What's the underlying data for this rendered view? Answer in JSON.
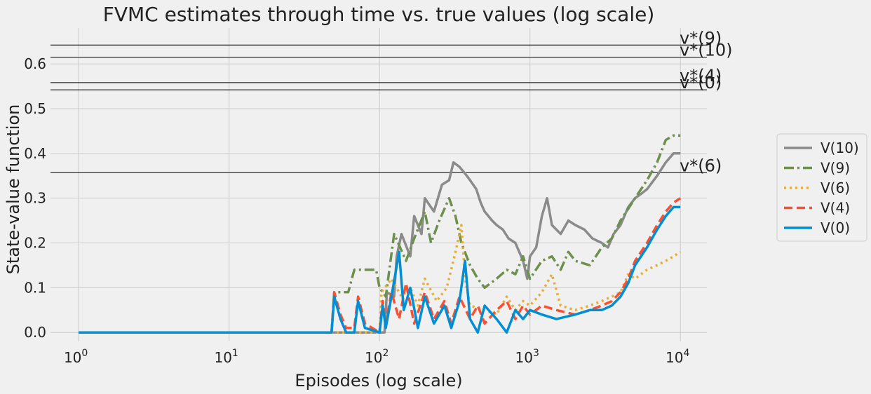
{
  "chart_data": {
    "type": "line",
    "title": "FVMC estimates through time vs. true values (log scale)",
    "xlabel": "Episodes (log scale)",
    "ylabel": "State-value function",
    "xscale": "log",
    "xlim": [
      0.65,
      15000
    ],
    "ylim": [
      -0.02,
      0.68
    ],
    "grid": true,
    "x_ticks": [
      {
        "value": 1,
        "base": "10",
        "exp": "0"
      },
      {
        "value": 10,
        "base": "10",
        "exp": "1"
      },
      {
        "value": 100,
        "base": "10",
        "exp": "2"
      },
      {
        "value": 1000,
        "base": "10",
        "exp": "3"
      },
      {
        "value": 10000,
        "base": "10",
        "exp": "4"
      }
    ],
    "y_ticks": [
      "0.0",
      "0.1",
      "0.2",
      "0.3",
      "0.4",
      "0.5",
      "0.6"
    ],
    "true_values": [
      {
        "label": "v*(9)",
        "value": 0.642
      },
      {
        "label": "v*(10)",
        "value": 0.615
      },
      {
        "label": "v*(4)",
        "value": 0.558
      },
      {
        "label": "v*(0)",
        "value": 0.542
      },
      {
        "label": "v*(6)",
        "value": 0.357
      }
    ],
    "legend_position": "right (outside plot)",
    "series": [
      {
        "name": "V(10)",
        "color": "#8b8b8b",
        "dash": "solid",
        "points": [
          [
            1,
            0
          ],
          [
            80,
            0
          ],
          [
            108,
            0
          ],
          [
            112,
            0.09
          ],
          [
            125,
            0.08
          ],
          [
            130,
            0.17
          ],
          [
            140,
            0.22
          ],
          [
            160,
            0.17
          ],
          [
            170,
            0.26
          ],
          [
            190,
            0.22
          ],
          [
            200,
            0.3
          ],
          [
            230,
            0.27
          ],
          [
            260,
            0.33
          ],
          [
            290,
            0.34
          ],
          [
            310,
            0.38
          ],
          [
            340,
            0.37
          ],
          [
            380,
            0.35
          ],
          [
            400,
            0.34
          ],
          [
            440,
            0.32
          ],
          [
            470,
            0.29
          ],
          [
            500,
            0.27
          ],
          [
            560,
            0.25
          ],
          [
            600,
            0.24
          ],
          [
            660,
            0.23
          ],
          [
            720,
            0.21
          ],
          [
            800,
            0.2
          ],
          [
            900,
            0.16
          ],
          [
            960,
            0.12
          ],
          [
            1000,
            0.17
          ],
          [
            1100,
            0.19
          ],
          [
            1200,
            0.26
          ],
          [
            1300,
            0.3
          ],
          [
            1400,
            0.24
          ],
          [
            1600,
            0.22
          ],
          [
            1800,
            0.25
          ],
          [
            2000,
            0.24
          ],
          [
            2300,
            0.23
          ],
          [
            2600,
            0.21
          ],
          [
            3000,
            0.2
          ],
          [
            3300,
            0.19
          ],
          [
            3600,
            0.22
          ],
          [
            4000,
            0.24
          ],
          [
            4500,
            0.28
          ],
          [
            5000,
            0.3
          ],
          [
            5500,
            0.31
          ],
          [
            6000,
            0.32
          ],
          [
            7000,
            0.35
          ],
          [
            8000,
            0.38
          ],
          [
            9000,
            0.4
          ],
          [
            10000,
            0.4
          ]
        ]
      },
      {
        "name": "V(9)",
        "color": "#6d904f",
        "dash": "dashdot",
        "points": [
          [
            1,
            0
          ],
          [
            48,
            0
          ],
          [
            50,
            0.09
          ],
          [
            62,
            0.09
          ],
          [
            68,
            0.14
          ],
          [
            95,
            0.14
          ],
          [
            100,
            0.1
          ],
          [
            110,
            0.08
          ],
          [
            125,
            0.22
          ],
          [
            150,
            0.16
          ],
          [
            170,
            0.21
          ],
          [
            200,
            0.27
          ],
          [
            220,
            0.2
          ],
          [
            250,
            0.25
          ],
          [
            290,
            0.3
          ],
          [
            320,
            0.26
          ],
          [
            350,
            0.2
          ],
          [
            400,
            0.15
          ],
          [
            450,
            0.12
          ],
          [
            500,
            0.1
          ],
          [
            600,
            0.12
          ],
          [
            700,
            0.14
          ],
          [
            800,
            0.13
          ],
          [
            900,
            0.17
          ],
          [
            1000,
            0.12
          ],
          [
            1200,
            0.16
          ],
          [
            1400,
            0.17
          ],
          [
            1600,
            0.14
          ],
          [
            1800,
            0.18
          ],
          [
            2000,
            0.16
          ],
          [
            2500,
            0.15
          ],
          [
            3000,
            0.19
          ],
          [
            3500,
            0.21
          ],
          [
            4000,
            0.25
          ],
          [
            5000,
            0.3
          ],
          [
            6000,
            0.34
          ],
          [
            7000,
            0.38
          ],
          [
            8000,
            0.43
          ],
          [
            9000,
            0.44
          ],
          [
            10000,
            0.44
          ]
        ]
      },
      {
        "name": "V(6)",
        "color": "#e5ae38",
        "dash": "dotted",
        "points": [
          [
            1,
            0
          ],
          [
            100,
            0
          ],
          [
            103,
            0.09
          ],
          [
            120,
            0.12
          ],
          [
            140,
            0.08
          ],
          [
            160,
            0.1
          ],
          [
            180,
            0.06
          ],
          [
            200,
            0.12
          ],
          [
            240,
            0.07
          ],
          [
            280,
            0.1
          ],
          [
            320,
            0.18
          ],
          [
            350,
            0.24
          ],
          [
            370,
            0.12
          ],
          [
            400,
            0.06
          ],
          [
            500,
            0.05
          ],
          [
            600,
            0.04
          ],
          [
            700,
            0.08
          ],
          [
            800,
            0.05
          ],
          [
            900,
            0.07
          ],
          [
            1000,
            0.06
          ],
          [
            1200,
            0.09
          ],
          [
            1400,
            0.13
          ],
          [
            1600,
            0.06
          ],
          [
            2000,
            0.05
          ],
          [
            2500,
            0.06
          ],
          [
            3000,
            0.07
          ],
          [
            3500,
            0.08
          ],
          [
            4000,
            0.09
          ],
          [
            4500,
            0.13
          ],
          [
            5000,
            0.12
          ],
          [
            6000,
            0.14
          ],
          [
            7000,
            0.15
          ],
          [
            8000,
            0.16
          ],
          [
            9000,
            0.17
          ],
          [
            10000,
            0.18
          ]
        ]
      },
      {
        "name": "V(4)",
        "color": "#fc4f30",
        "dash": "dashed",
        "points": [
          [
            1,
            0
          ],
          [
            48,
            0
          ],
          [
            50,
            0.09
          ],
          [
            55,
            0.04
          ],
          [
            60,
            0.01
          ],
          [
            68,
            0.01
          ],
          [
            72,
            0.08
          ],
          [
            80,
            0.02
          ],
          [
            100,
            0.0
          ],
          [
            105,
            0.07
          ],
          [
            110,
            0.02
          ],
          [
            120,
            0.09
          ],
          [
            135,
            0.03
          ],
          [
            150,
            0.11
          ],
          [
            170,
            0.02
          ],
          [
            200,
            0.09
          ],
          [
            230,
            0.03
          ],
          [
            270,
            0.07
          ],
          [
            300,
            0.02
          ],
          [
            340,
            0.08
          ],
          [
            400,
            0.03
          ],
          [
            450,
            0.06
          ],
          [
            500,
            0.02
          ],
          [
            600,
            0.05
          ],
          [
            700,
            0.07
          ],
          [
            800,
            0.03
          ],
          [
            900,
            0.06
          ],
          [
            1000,
            0.04
          ],
          [
            1200,
            0.06
          ],
          [
            1500,
            0.05
          ],
          [
            2000,
            0.04
          ],
          [
            2500,
            0.05
          ],
          [
            3000,
            0.06
          ],
          [
            3500,
            0.07
          ],
          [
            4000,
            0.09
          ],
          [
            4500,
            0.12
          ],
          [
            5000,
            0.16
          ],
          [
            6000,
            0.2
          ],
          [
            7000,
            0.24
          ],
          [
            8000,
            0.27
          ],
          [
            9000,
            0.29
          ],
          [
            10000,
            0.3
          ]
        ]
      },
      {
        "name": "V(0)",
        "color": "#008fd5",
        "dash": "solid",
        "points": [
          [
            1,
            0
          ],
          [
            48,
            0
          ],
          [
            50,
            0.08
          ],
          [
            55,
            0.03
          ],
          [
            60,
            0.0
          ],
          [
            68,
            0.0
          ],
          [
            72,
            0.07
          ],
          [
            80,
            0.01
          ],
          [
            100,
            0.0
          ],
          [
            105,
            0.06
          ],
          [
            110,
            0.01
          ],
          [
            120,
            0.08
          ],
          [
            135,
            0.18
          ],
          [
            145,
            0.05
          ],
          [
            160,
            0.1
          ],
          [
            180,
            0.01
          ],
          [
            200,
            0.08
          ],
          [
            230,
            0.02
          ],
          [
            270,
            0.06
          ],
          [
            300,
            0.01
          ],
          [
            340,
            0.07
          ],
          [
            370,
            0.16
          ],
          [
            400,
            0.03
          ],
          [
            450,
            0.0
          ],
          [
            500,
            0.06
          ],
          [
            600,
            0.03
          ],
          [
            700,
            0.0
          ],
          [
            800,
            0.05
          ],
          [
            900,
            0.03
          ],
          [
            1000,
            0.05
          ],
          [
            1200,
            0.04
          ],
          [
            1500,
            0.03
          ],
          [
            2000,
            0.04
          ],
          [
            2500,
            0.05
          ],
          [
            3000,
            0.05
          ],
          [
            3500,
            0.06
          ],
          [
            4000,
            0.08
          ],
          [
            4500,
            0.11
          ],
          [
            5000,
            0.15
          ],
          [
            6000,
            0.19
          ],
          [
            7000,
            0.23
          ],
          [
            8000,
            0.26
          ],
          [
            9000,
            0.28
          ],
          [
            10000,
            0.28
          ]
        ]
      }
    ]
  }
}
